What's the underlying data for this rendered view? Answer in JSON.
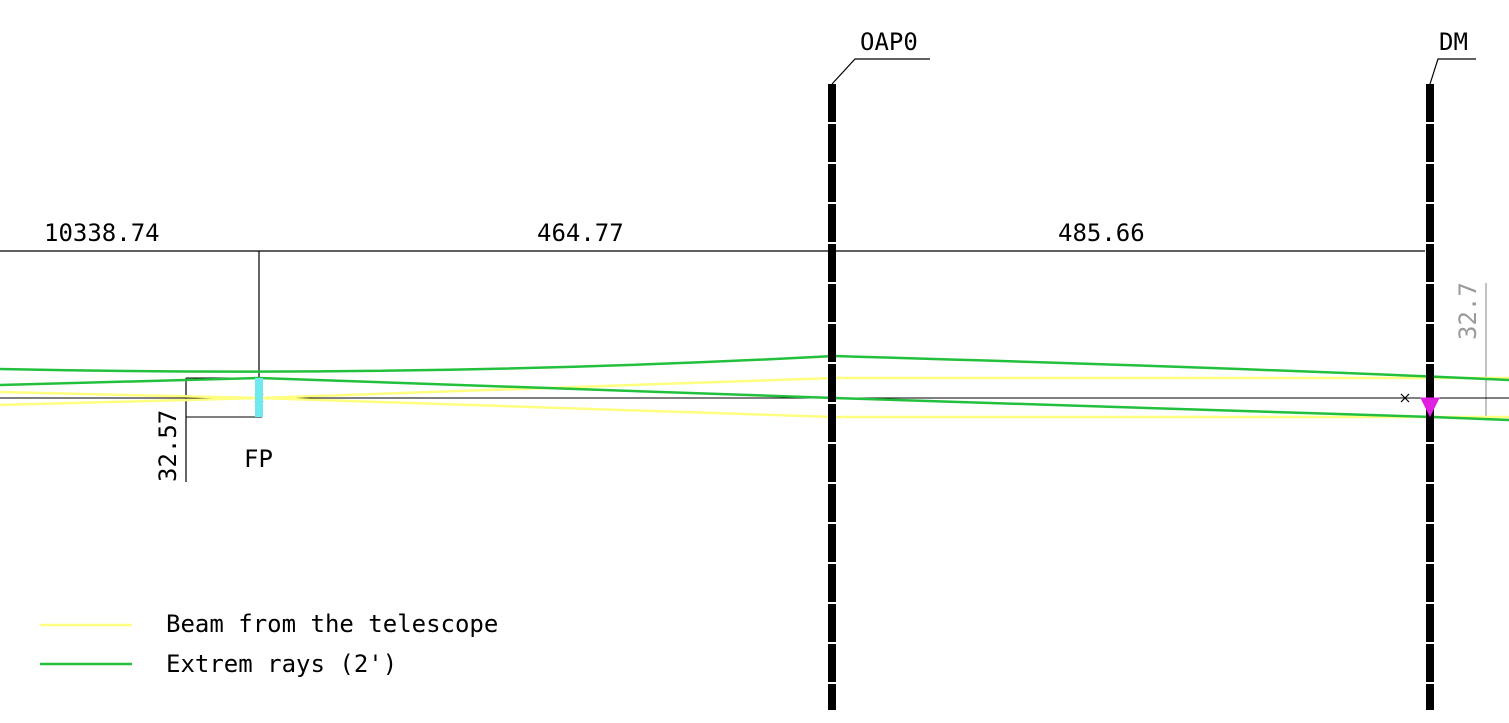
{
  "dimensions": {
    "segment_left": "10338.74",
    "segment_fp_to_oap0": "464.77",
    "segment_oap0_to_dm": "485.66",
    "fp_height": "32.57",
    "dm_height": "32.7"
  },
  "elements": {
    "oap0": "OAP0",
    "dm": "DM",
    "fp": "FP"
  },
  "legend": {
    "beam": "Beam from the telescope",
    "extreme": "Extrem rays (2')"
  },
  "colors": {
    "beam": "#ffff80",
    "extreme": "#22c03c",
    "fp_marker": "#70e8f0",
    "dm_marker": "#e020e0",
    "mirror": "#000000",
    "dimension_gray": "#9a9a9a"
  }
}
